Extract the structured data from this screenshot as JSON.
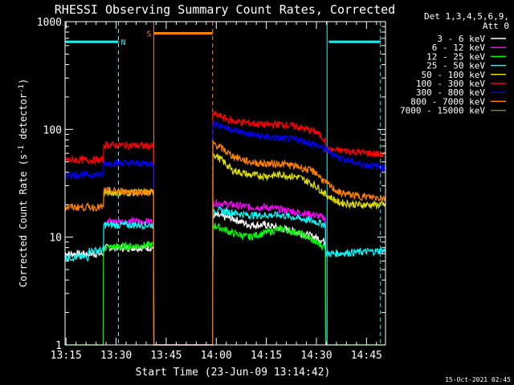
{
  "chart_data": {
    "type": "line",
    "title": "RHESSI Observing Summary Count Rates, Corrected",
    "xlabel": "Start Time (23-Jun-09 13:14:42)",
    "ylabel_main": "Corrected Count Rate (s",
    "ylabel_sup1": "-1",
    "ylabel_mid": " detector",
    "ylabel_sup2": "-1",
    "ylabel_end": ")",
    "x_unit": "minutes since 13:14:42",
    "xlim": [
      0,
      96
    ],
    "ylim": [
      1,
      1000
    ],
    "yscale": "log",
    "x_ticks": [
      {
        "label": "13:15",
        "x": 0.3
      },
      {
        "label": "13:30",
        "x": 15.3
      },
      {
        "label": "13:45",
        "x": 30.3
      },
      {
        "label": "14:00",
        "x": 45.3
      },
      {
        "label": "14:15",
        "x": 60.3
      },
      {
        "label": "14:30",
        "x": 75.3
      },
      {
        "label": "14:45",
        "x": 90.3
      }
    ],
    "y_ticks": [
      {
        "label": "1",
        "v": 1
      },
      {
        "label": "10",
        "v": 10
      },
      {
        "label": "100",
        "v": 100
      },
      {
        "label": "1000",
        "v": 1000
      }
    ],
    "legend_header": [
      "Det 1,3,4,5,6,9,",
      "Att 0"
    ],
    "legend_position": "right",
    "series": [
      {
        "name": "3 - 6 keV",
        "color": "#ffffff",
        "points": [
          [
            0,
            7
          ],
          [
            11.5,
            7
          ],
          [
            11.6,
            8
          ],
          [
            26.5,
            8
          ],
          [
            26.6,
            1
          ],
          [
            44.2,
            1
          ],
          [
            44.3,
            16
          ],
          [
            50,
            15
          ],
          [
            55,
            13
          ],
          [
            60,
            13
          ],
          [
            65,
            12
          ],
          [
            70,
            11
          ],
          [
            75,
            10
          ],
          [
            78,
            9
          ],
          [
            78.1,
            1
          ]
        ]
      },
      {
        "name": "6 - 12 keV",
        "color": "#ff00ff",
        "points": [
          [
            11.6,
            14
          ],
          [
            26.5,
            14
          ],
          [
            26.6,
            1
          ],
          [
            44.2,
            1
          ],
          [
            44.3,
            21
          ],
          [
            50,
            20
          ],
          [
            55,
            19
          ],
          [
            60,
            19
          ],
          [
            65,
            18
          ],
          [
            70,
            17
          ],
          [
            75,
            16
          ],
          [
            78,
            15
          ],
          [
            78.1,
            1
          ]
        ]
      },
      {
        "name": "12 - 25 keV",
        "color": "#00ff00",
        "points": [
          [
            0,
            1
          ],
          [
            11.4,
            1
          ],
          [
            11.5,
            8
          ],
          [
            26.5,
            8.5
          ],
          [
            26.6,
            1
          ],
          [
            44.2,
            1
          ],
          [
            44.3,
            13
          ],
          [
            50,
            11
          ],
          [
            55,
            10
          ],
          [
            60,
            11
          ],
          [
            65,
            12
          ],
          [
            70,
            11
          ],
          [
            75,
            9
          ],
          [
            78,
            8
          ],
          [
            78.1,
            1
          ],
          [
            96,
            1
          ]
        ]
      },
      {
        "name": "25 - 50 keV",
        "color": "#00ffff",
        "points": [
          [
            0,
            6.5
          ],
          [
            7,
            6.5
          ],
          [
            7.1,
            7.5
          ],
          [
            11.5,
            7.5
          ],
          [
            11.6,
            13
          ],
          [
            26.5,
            13
          ],
          [
            26.6,
            1
          ],
          [
            44.2,
            1
          ],
          [
            44.3,
            18
          ],
          [
            50,
            17
          ],
          [
            55,
            16
          ],
          [
            60,
            16
          ],
          [
            65,
            16
          ],
          [
            70,
            15
          ],
          [
            75,
            14
          ],
          [
            78,
            13
          ],
          [
            78.1,
            7
          ],
          [
            96,
            7.5
          ]
        ]
      },
      {
        "name": "50 - 100 keV",
        "color": "#e0e000",
        "points": [
          [
            11.6,
            26
          ],
          [
            26.5,
            26
          ],
          [
            26.6,
            1
          ],
          [
            44.2,
            1
          ],
          [
            44.3,
            60
          ],
          [
            50,
            42
          ],
          [
            55,
            38
          ],
          [
            60,
            37
          ],
          [
            65,
            38
          ],
          [
            70,
            36
          ],
          [
            75,
            30
          ],
          [
            78,
            25
          ],
          [
            82,
            21
          ],
          [
            88,
            20
          ],
          [
            96,
            20
          ]
        ]
      },
      {
        "name": "100 - 300 keV",
        "color": "#ff0000",
        "points": [
          [
            0,
            52
          ],
          [
            11.5,
            52
          ],
          [
            11.6,
            72
          ],
          [
            26.5,
            70
          ],
          [
            26.6,
            1
          ],
          [
            44.2,
            1
          ],
          [
            44.3,
            140
          ],
          [
            50,
            120
          ],
          [
            55,
            115
          ],
          [
            60,
            110
          ],
          [
            65,
            112
          ],
          [
            70,
            105
          ],
          [
            75,
            95
          ],
          [
            78,
            80
          ],
          [
            78.1,
            65
          ],
          [
            85,
            63
          ],
          [
            96,
            58
          ]
        ]
      },
      {
        "name": "300 - 800 keV",
        "color": "#0000ff",
        "points": [
          [
            0,
            38
          ],
          [
            11.5,
            38
          ],
          [
            11.6,
            49
          ],
          [
            26.5,
            48
          ],
          [
            26.6,
            1
          ],
          [
            44.2,
            1
          ],
          [
            44.3,
            115
          ],
          [
            50,
            100
          ],
          [
            55,
            90
          ],
          [
            60,
            85
          ],
          [
            65,
            82
          ],
          [
            70,
            80
          ],
          [
            75,
            72
          ],
          [
            78,
            65
          ],
          [
            82,
            55
          ],
          [
            88,
            48
          ],
          [
            96,
            44
          ]
        ]
      },
      {
        "name": "800 - 7000 keV",
        "color": "#ff8000",
        "points": [
          [
            0,
            19
          ],
          [
            11.5,
            19
          ],
          [
            11.6,
            27
          ],
          [
            26.5,
            26
          ],
          [
            26.6,
            1
          ],
          [
            44.2,
            1
          ],
          [
            44.3,
            75
          ],
          [
            50,
            57
          ],
          [
            55,
            50
          ],
          [
            60,
            48
          ],
          [
            65,
            48
          ],
          [
            70,
            45
          ],
          [
            75,
            40
          ],
          [
            78,
            32
          ],
          [
            82,
            26
          ],
          [
            88,
            24
          ],
          [
            96,
            23
          ]
        ]
      },
      {
        "name": "7000 - 15000 keV",
        "color": "#6b8e23",
        "points": []
      }
    ],
    "flag_bars": [
      {
        "label": "",
        "color": "#00ffff",
        "x0": 0,
        "x1": 16,
        "level": 650
      },
      {
        "label": "N",
        "color": "#00ffff",
        "x0": 16,
        "x1": 16,
        "level": 650
      },
      {
        "label": "",
        "color": "#00ffff",
        "x0": 79,
        "x1": 94.5,
        "level": 650
      },
      {
        "label": "S",
        "color": "#ff8000",
        "x0": 26.6,
        "x1": 44.2,
        "level": 780
      }
    ],
    "markers": [
      {
        "x": 16,
        "color": "#00ffff",
        "style": "dashed"
      },
      {
        "x": 26.6,
        "color": "#ff8000",
        "style": "solid"
      },
      {
        "x": 44.2,
        "color": "#ff8000",
        "style": "dashed"
      },
      {
        "x": 78.5,
        "color": "#00ffff",
        "style": "solid"
      },
      {
        "x": 94.5,
        "color": "#00ffff",
        "style": "dashed"
      }
    ]
  },
  "footer_timestamp": "15-Oct-2021 02:45"
}
